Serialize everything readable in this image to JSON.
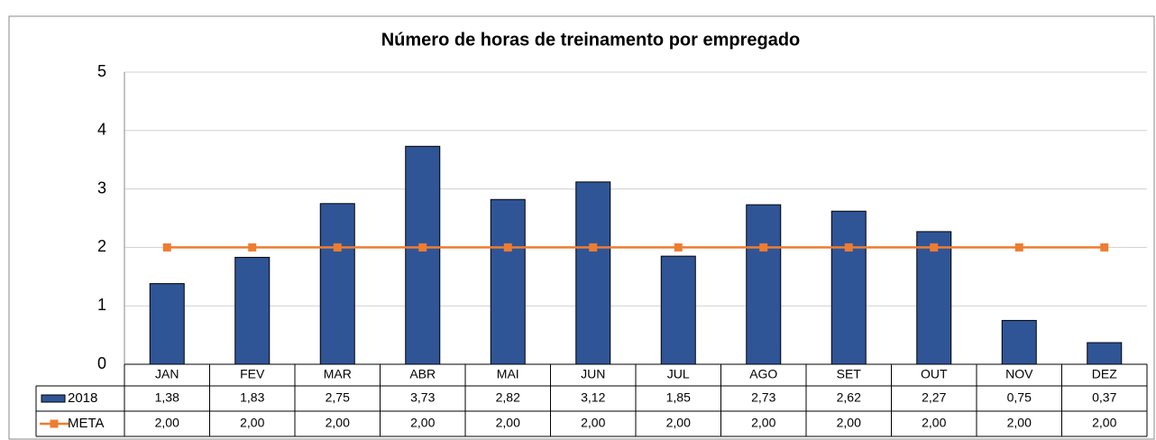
{
  "chart_data": {
    "type": "bar",
    "title": "Número de horas de treinamento por empregado",
    "categories": [
      "JAN",
      "FEV",
      "MAR",
      "ABR",
      "MAI",
      "JUN",
      "JUL",
      "AGO",
      "SET",
      "OUT",
      "NOV",
      "DEZ"
    ],
    "series": [
      {
        "name": "2018",
        "type": "bar",
        "color": "#2f5597",
        "values": [
          1.38,
          1.83,
          2.75,
          3.73,
          2.82,
          3.12,
          1.85,
          2.73,
          2.62,
          2.27,
          0.75,
          0.37
        ],
        "value_labels": [
          "1,38",
          "1,83",
          "2,75",
          "3,73",
          "2,82",
          "3,12",
          "1,85",
          "2,73",
          "2,62",
          "2,27",
          "0,75",
          "0,37"
        ]
      },
      {
        "name": "META",
        "type": "line",
        "color": "#ed7d31",
        "values": [
          2,
          2,
          2,
          2,
          2,
          2,
          2,
          2,
          2,
          2,
          2,
          2
        ],
        "value_labels": [
          "2,00",
          "2,00",
          "2,00",
          "2,00",
          "2,00",
          "2,00",
          "2,00",
          "2,00",
          "2,00",
          "2,00",
          "2,00",
          "2,00"
        ]
      }
    ],
    "ylim": [
      0,
      5
    ],
    "yticks": [
      0,
      1,
      2,
      3,
      4,
      5
    ],
    "grid": true
  }
}
